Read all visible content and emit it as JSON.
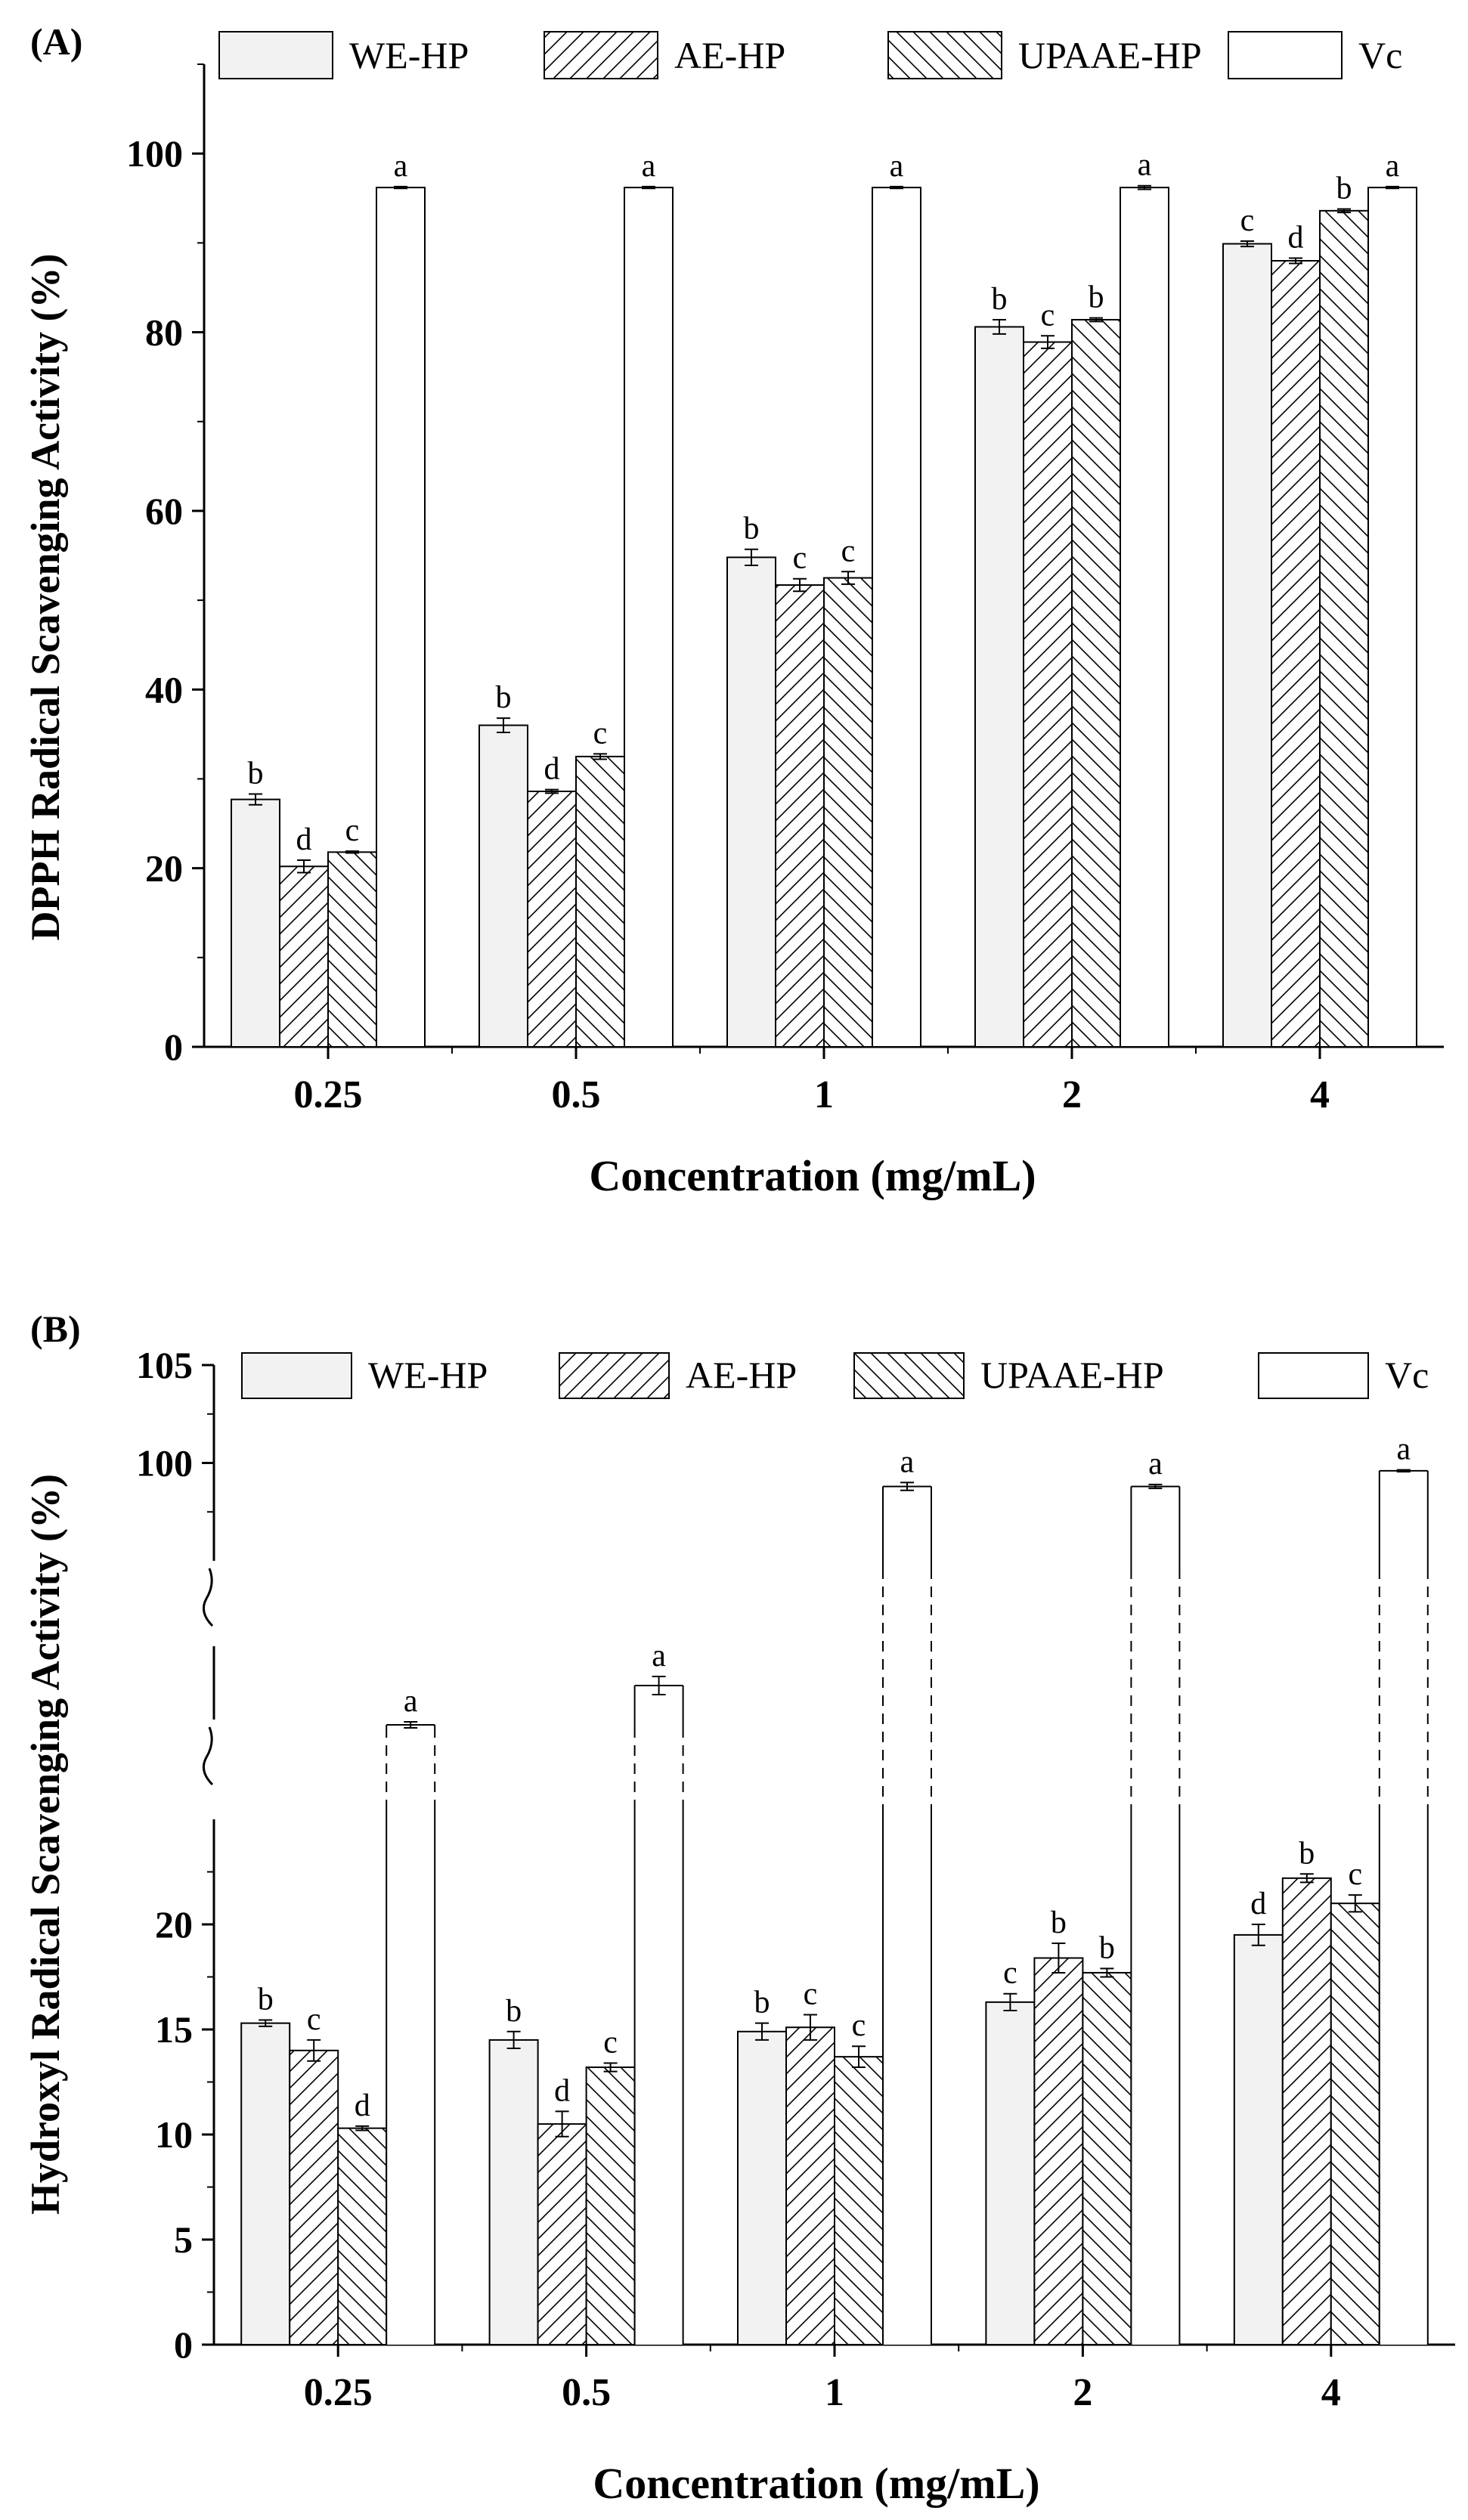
{
  "chart_data": [
    {
      "type": "bar",
      "panel_label": "(A)",
      "title": "",
      "xlabel": "Concentration (mg/mL)",
      "ylabel": "DPPH Radical Scavenging Activity (%)",
      "ylim": [
        0,
        110
      ],
      "y_ticks": [
        "0",
        "20",
        "40",
        "60",
        "80",
        "100"
      ],
      "categories": [
        "0.25",
        "0.5",
        "1",
        "2",
        "4"
      ],
      "legend": [
        "WE-HP",
        "AE-HP",
        "UPAAE-HP",
        "Vc"
      ],
      "series": [
        {
          "name": "WE-HP",
          "values": [
            27.7,
            36.0,
            54.8,
            80.6,
            89.9
          ],
          "errors": [
            0.6,
            0.8,
            0.9,
            0.8,
            0.3
          ],
          "letters": [
            "b",
            "b",
            "b",
            "b",
            "c"
          ]
        },
        {
          "name": "AE-HP",
          "values": [
            20.2,
            28.6,
            51.7,
            78.9,
            88.0
          ],
          "errors": [
            0.7,
            0.2,
            0.7,
            0.7,
            0.3
          ],
          "letters": [
            "d",
            "d",
            "c",
            "c",
            "d"
          ]
        },
        {
          "name": "UPAAE-HP",
          "values": [
            21.8,
            32.5,
            52.5,
            81.4,
            93.6
          ],
          "errors": [
            0.1,
            0.3,
            0.7,
            0.2,
            0.2
          ],
          "letters": [
            "c",
            "c",
            "c",
            "b",
            "b"
          ]
        },
        {
          "name": "Vc",
          "values": [
            96.2,
            96.2,
            96.2,
            96.2,
            96.2
          ],
          "errors": [
            0.1,
            0.1,
            0.1,
            0.2,
            0.1
          ],
          "letters": [
            "a",
            "a",
            "a",
            "a",
            "a"
          ]
        }
      ]
    },
    {
      "type": "bar",
      "panel_label": "(B)",
      "title": "",
      "xlabel": "Concentration (mg/mL)",
      "ylabel": "Hydroxyl Radical Scavenging Activity (%)",
      "ylim_lower": [
        0,
        25
      ],
      "ylim_upper": [
        95,
        105
      ],
      "broken_axis": true,
      "y_ticks_lower": [
        "0",
        "5",
        "10",
        "15",
        "20"
      ],
      "y_ticks_upper": [
        "100",
        "105"
      ],
      "categories": [
        "0.25",
        "0.5",
        "1",
        "2",
        "4"
      ],
      "legend": [
        "WE-HP",
        "AE-HP",
        "UPAAE-HP",
        "Vc"
      ],
      "series": [
        {
          "name": "WE-HP",
          "values": [
            15.3,
            14.5,
            14.9,
            16.3,
            19.5
          ],
          "errors": [
            0.15,
            0.4,
            0.4,
            0.4,
            0.5
          ],
          "letters": [
            "b",
            "b",
            "b",
            "c",
            "d"
          ]
        },
        {
          "name": "AE-HP",
          "values": [
            14.0,
            10.5,
            15.1,
            18.4,
            22.2
          ],
          "errors": [
            0.5,
            0.6,
            0.6,
            0.7,
            0.2
          ],
          "letters": [
            "c",
            "d",
            "c",
            "b",
            "b"
          ]
        },
        {
          "name": "UPAAE-HP",
          "values": [
            10.3,
            13.2,
            13.7,
            17.7,
            21.0
          ],
          "errors": [
            0.1,
            0.2,
            0.5,
            0.2,
            0.4
          ],
          "letters": [
            "d",
            "c",
            "c",
            "b",
            "c"
          ]
        },
        {
          "name": "Vc",
          "values": [
            null,
            null,
            98.8,
            98.8,
            99.6
          ],
          "errors": [
            0.1,
            0.3,
            0.2,
            0.1,
            0.05
          ],
          "letters": [
            "a",
            "a",
            "a",
            "a",
            "a"
          ]
        }
      ]
    }
  ]
}
